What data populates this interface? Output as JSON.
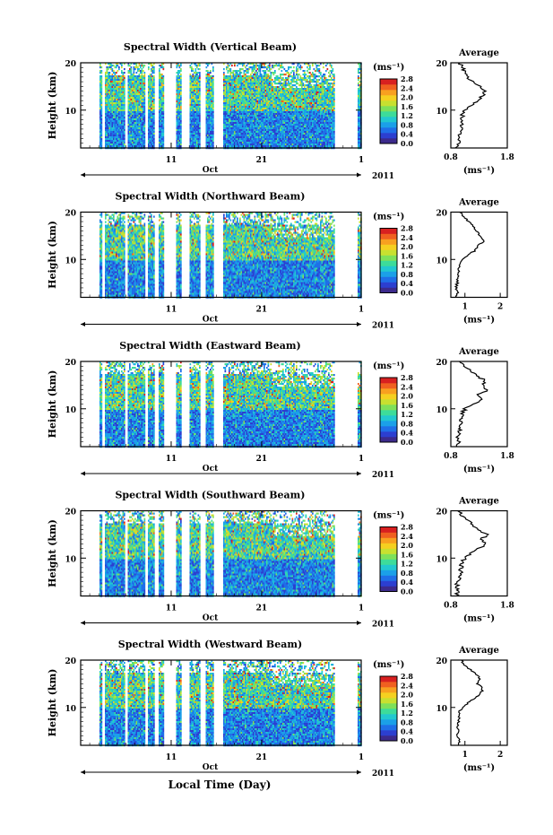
{
  "figure": {
    "xlabel": "Local Time (Day)",
    "month_label": "Oct",
    "year_label": "2011",
    "x_ticks": [
      "11",
      "21",
      "1"
    ],
    "ylabel": "Height (km)",
    "y_ticks": [
      "10",
      "20"
    ],
    "unit_label": "(ms⁻¹)",
    "avg_title": "Average",
    "avg_xlabel": "(ms⁻¹)"
  },
  "colorbar": {
    "ticks": [
      "0.0",
      "0.4",
      "0.8",
      "1.2",
      "1.6",
      "2.0",
      "2.4",
      "2.8"
    ],
    "colors": [
      "#3c2a8c",
      "#2c3fd0",
      "#1f6fe8",
      "#1ba0e8",
      "#22c8d0",
      "#3ddc9a",
      "#7ee05a",
      "#c8e030",
      "#f5d020",
      "#f8a020",
      "#f06020",
      "#d82020"
    ]
  },
  "chart_data": [
    {
      "type": "heatmap",
      "title": "Spectral Width (Vertical Beam)",
      "x_range_days": [
        1,
        32
      ],
      "y_range_km": [
        2,
        20
      ],
      "clim": [
        0,
        2.8
      ],
      "data_gaps_days": [
        [
          9.1,
          9.6
        ],
        [
          10.2,
          11.4
        ],
        [
          12.1,
          12.9
        ],
        [
          14.1,
          14.8
        ],
        [
          15.6,
          16.6
        ],
        [
          29.0,
          31.6
        ]
      ],
      "average_profile": {
        "x_ticks": [
          "0.8",
          "1.8"
        ],
        "xlim": [
          0.8,
          1.8
        ],
        "height_km": [
          2,
          3,
          4,
          5,
          6,
          7,
          8,
          9,
          10,
          11,
          12,
          13,
          14,
          15,
          16,
          17,
          18,
          19,
          20
        ],
        "width_ms": [
          0.9,
          0.95,
          0.95,
          0.95,
          0.97,
          0.98,
          1.0,
          1.0,
          1.05,
          1.15,
          1.3,
          1.35,
          1.4,
          1.3,
          1.2,
          1.1,
          1.05,
          1.0,
          0.95
        ]
      }
    },
    {
      "type": "heatmap",
      "title": "Spectral Width (Northward Beam)",
      "x_range_days": [
        1,
        32
      ],
      "y_range_km": [
        2,
        20
      ],
      "clim": [
        0,
        2.8
      ],
      "data_gaps_days": [
        [
          9.1,
          9.6
        ],
        [
          10.2,
          11.4
        ],
        [
          12.1,
          12.9
        ],
        [
          14.1,
          14.8
        ],
        [
          15.6,
          16.6
        ],
        [
          29.0,
          31.6
        ]
      ],
      "average_profile": {
        "x_ticks": [
          "1",
          "2"
        ],
        "xlim": [
          0.6,
          2.2
        ],
        "height_km": [
          2,
          3,
          4,
          5,
          6,
          7,
          8,
          9,
          10,
          11,
          12,
          13,
          14,
          15,
          16,
          17,
          18,
          19,
          20
        ],
        "width_ms": [
          0.75,
          0.8,
          0.75,
          0.78,
          0.8,
          0.8,
          0.82,
          0.85,
          0.9,
          1.1,
          1.3,
          1.4,
          1.55,
          1.45,
          1.3,
          1.25,
          1.1,
          0.95,
          0.85
        ]
      }
    },
    {
      "type": "heatmap",
      "title": "Spectral Width (Eastward Beam)",
      "x_range_days": [
        1,
        32
      ],
      "y_range_km": [
        2,
        20
      ],
      "clim": [
        0,
        2.8
      ],
      "data_gaps_days": [
        [
          9.1,
          9.6
        ],
        [
          10.2,
          11.4
        ],
        [
          12.1,
          12.9
        ],
        [
          14.1,
          14.8
        ],
        [
          15.6,
          16.6
        ],
        [
          29.0,
          31.6
        ]
      ],
      "average_profile": {
        "x_ticks": [
          "0.8",
          "1.8"
        ],
        "xlim": [
          0.8,
          1.8
        ],
        "height_km": [
          2,
          3,
          4,
          5,
          6,
          7,
          8,
          9,
          10,
          11,
          12,
          13,
          14,
          15,
          16,
          17,
          18,
          19,
          20
        ],
        "width_ms": [
          0.9,
          0.95,
          0.92,
          0.95,
          0.97,
          0.98,
          1.0,
          1.0,
          1.05,
          1.2,
          1.35,
          1.3,
          1.45,
          1.35,
          1.4,
          1.25,
          1.15,
          1.05,
          0.95
        ]
      }
    },
    {
      "type": "heatmap",
      "title": "Spectral Width (Southward Beam)",
      "x_range_days": [
        1,
        32
      ],
      "y_range_km": [
        2,
        20
      ],
      "clim": [
        0,
        2.8
      ],
      "data_gaps_days": [
        [
          9.1,
          9.6
        ],
        [
          10.2,
          11.4
        ],
        [
          12.1,
          12.9
        ],
        [
          14.1,
          14.8
        ],
        [
          15.6,
          16.6
        ],
        [
          29.0,
          31.6
        ]
      ],
      "average_profile": {
        "x_ticks": [
          "0.8",
          "1.8"
        ],
        "xlim": [
          0.8,
          1.8
        ],
        "height_km": [
          2,
          3,
          4,
          5,
          6,
          7,
          8,
          9,
          10,
          11,
          12,
          13,
          14,
          15,
          16,
          17,
          18,
          19,
          20
        ],
        "width_ms": [
          0.88,
          0.95,
          0.9,
          0.93,
          0.95,
          0.97,
          0.98,
          1.0,
          1.05,
          1.15,
          1.3,
          1.4,
          1.35,
          1.45,
          1.3,
          1.2,
          1.1,
          1.0,
          0.92
        ]
      }
    },
    {
      "type": "heatmap",
      "title": "Spectral Width (Westward Beam)",
      "x_range_days": [
        1,
        32
      ],
      "y_range_km": [
        2,
        20
      ],
      "clim": [
        0,
        2.8
      ],
      "data_gaps_days": [
        [
          9.1,
          9.6
        ],
        [
          10.2,
          11.4
        ],
        [
          12.1,
          12.9
        ],
        [
          14.1,
          14.8
        ],
        [
          15.6,
          16.6
        ],
        [
          29.0,
          31.6
        ]
      ],
      "average_profile": {
        "x_ticks": [
          "1",
          "2"
        ],
        "xlim": [
          0.6,
          2.2
        ],
        "height_km": [
          2,
          3,
          4,
          5,
          6,
          7,
          8,
          9,
          10,
          11,
          12,
          13,
          14,
          15,
          16,
          17,
          18,
          19,
          20
        ],
        "width_ms": [
          0.8,
          0.85,
          0.75,
          0.8,
          0.8,
          0.82,
          0.85,
          0.85,
          0.9,
          1.1,
          1.3,
          1.45,
          1.5,
          1.35,
          1.45,
          1.3,
          1.15,
          1.0,
          0.9
        ]
      }
    }
  ]
}
